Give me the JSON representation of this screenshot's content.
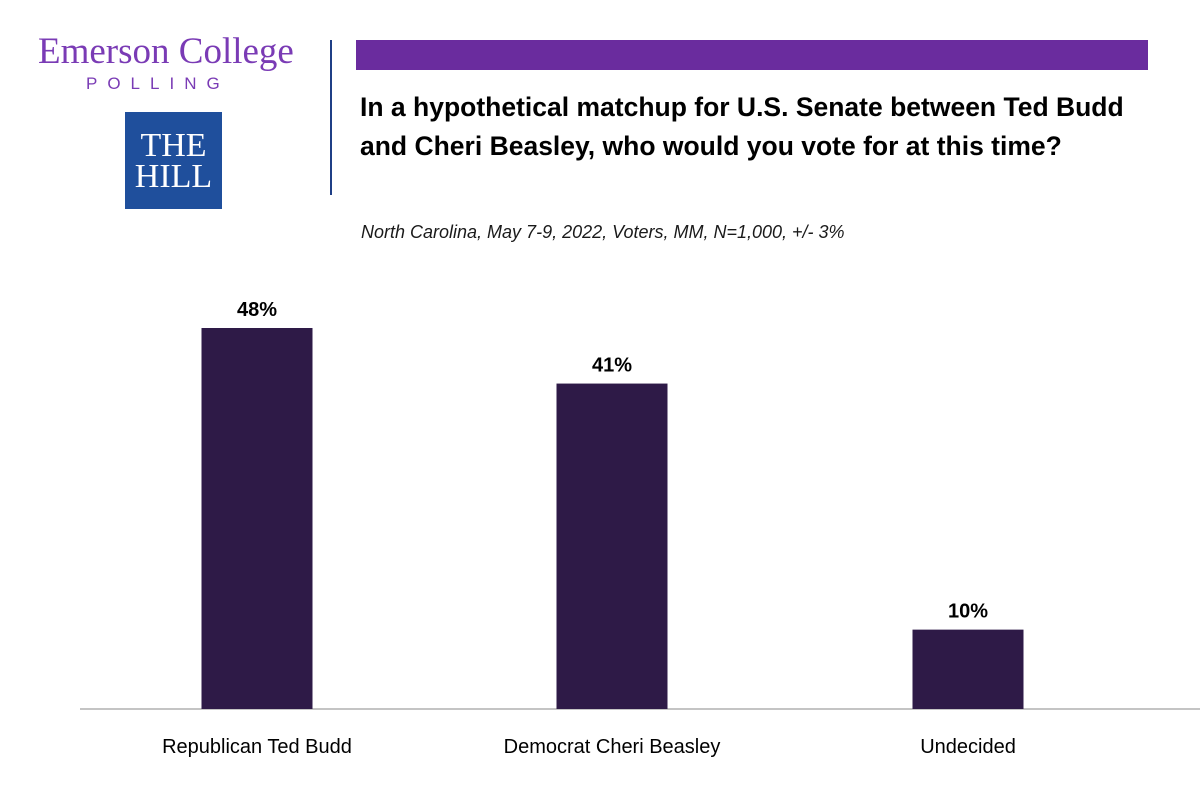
{
  "branding": {
    "org_name": "Emerson College",
    "org_sub": "POLLING",
    "partner_line1": "THE",
    "partner_line2": "HILL"
  },
  "colors": {
    "brand_purple": "#7a3bb5",
    "accent_bar": "#6a2c9e",
    "divider": "#1f3f86",
    "hill_blue": "#1f4f9c",
    "bar": "#2e1a47",
    "axis": "#b0b0b0"
  },
  "chart_data": {
    "type": "bar",
    "title": "In a hypothetical matchup for U.S. Senate between Ted Budd and Cheri Beasley, who would you vote for at this time?",
    "subtitle": "North Carolina, May 7-9, 2022, Voters, MM, N=1,000, +/- 3%",
    "categories": [
      "Republican Ted Budd",
      "Democrat Cheri Beasley",
      "Undecided"
    ],
    "values": [
      48,
      41,
      10
    ],
    "value_labels": [
      "48%",
      "41%",
      "10%"
    ],
    "xlabel": "",
    "ylabel": "",
    "ylim": [
      0,
      48
    ],
    "grid": false,
    "legend": "none"
  }
}
